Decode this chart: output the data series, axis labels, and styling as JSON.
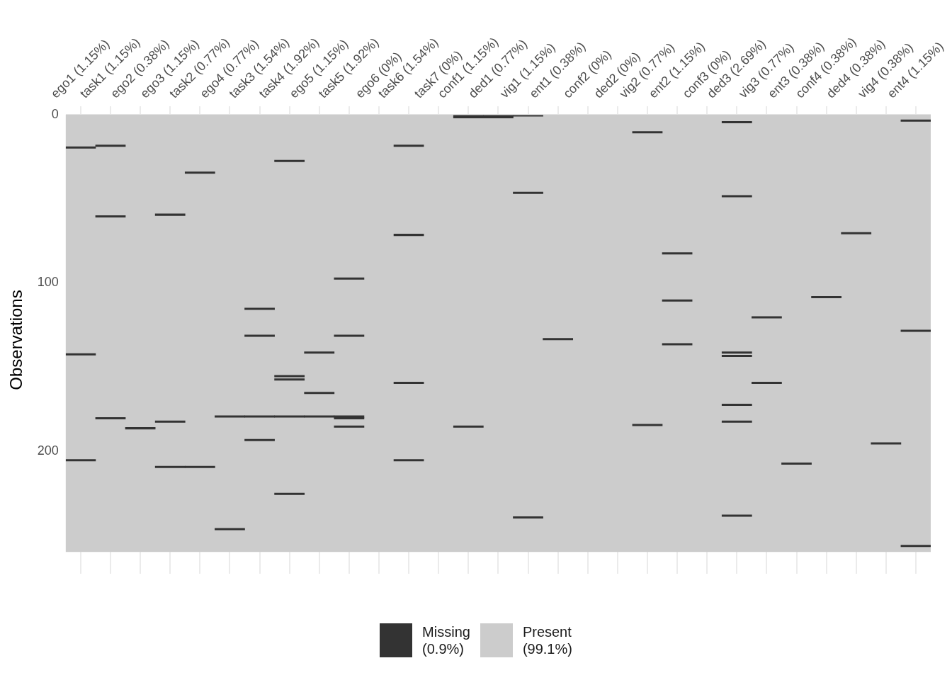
{
  "chart_data": {
    "type": "bar",
    "ylabel": "Observations",
    "categories": [
      "ego1 (1.15%)",
      "task1 (1.15%)",
      "ego2 (0.38%)",
      "ego3 (1.15%)",
      "task2 (0.77%)",
      "ego4 (0.77%)",
      "task3 (1.54%)",
      "task4 (1.92%)",
      "ego5 (1.15%)",
      "task5 (1.92%)",
      "ego6 (0%)",
      "task6 (1.54%)",
      "task7 (0%)",
      "conf1 (1.15%)",
      "ded1 (0.77%)",
      "vig1 (1.15%)",
      "ent1 (0.38%)",
      "conf2 (0%)",
      "ded2 (0%)",
      "vig2 (0.77%)",
      "ent2 (1.15%)",
      "conf3 (0%)",
      "ded3 (2.69%)",
      "vig3 (0.77%)",
      "ent3 (0.38%)",
      "conf4 (0.38%)",
      "ded4 (0.38%)",
      "vig4 (0.38%)",
      "ent4 (1.15%)"
    ],
    "series": [
      {
        "name": "Missing\n(0.9%)",
        "color": "#333333",
        "base": [
          19,
          18,
          186,
          59,
          34,
          179,
          115,
          27,
          141,
          97,
          null,
          18,
          null,
          0,
          0,
          0,
          133,
          null,
          null,
          10,
          82,
          null,
          4,
          120,
          207,
          108,
          70,
          195,
          3
        ],
        "values": [
          1,
          1,
          1,
          1,
          1,
          1,
          1,
          1,
          1,
          1,
          null,
          1,
          null,
          1,
          1,
          1,
          1,
          null,
          null,
          1,
          1,
          null,
          1,
          1,
          1,
          1,
          1,
          1,
          1
        ]
      },
      {
        "color": "#333333",
        "base": [
          142,
          60,
          null,
          182,
          209,
          246,
          131,
          155,
          165,
          131,
          null,
          71,
          null,
          1,
          1,
          46,
          null,
          null,
          null,
          184,
          110,
          null,
          48,
          159,
          null,
          null,
          null,
          null,
          128
        ],
        "values": [
          1,
          1,
          null,
          1,
          1,
          1,
          1,
          1,
          1,
          1,
          null,
          1,
          null,
          1,
          1,
          1,
          null,
          null,
          null,
          1,
          1,
          null,
          1,
          1,
          null,
          null,
          null,
          null,
          1
        ]
      },
      {
        "color": "#333333",
        "base": [
          205,
          180,
          null,
          209,
          null,
          null,
          179,
          157,
          179,
          179,
          null,
          159,
          null,
          185,
          null,
          239,
          null,
          null,
          null,
          null,
          136,
          null,
          141,
          null,
          null,
          null,
          null,
          null,
          256
        ],
        "values": [
          1,
          1,
          null,
          1,
          null,
          null,
          1,
          1,
          1,
          1,
          null,
          1,
          null,
          1,
          null,
          1,
          null,
          null,
          null,
          null,
          1,
          null,
          1,
          null,
          null,
          null,
          null,
          null,
          1
        ]
      },
      {
        "color": "#333333",
        "base": [
          null,
          null,
          null,
          null,
          null,
          null,
          193,
          179,
          null,
          180,
          null,
          205,
          null,
          null,
          null,
          null,
          null,
          null,
          null,
          null,
          null,
          null,
          143,
          null,
          null,
          null,
          null,
          null,
          null
        ],
        "values": [
          null,
          null,
          null,
          null,
          null,
          null,
          1,
          1,
          null,
          1,
          null,
          1,
          null,
          null,
          null,
          null,
          null,
          null,
          null,
          null,
          null,
          null,
          1,
          null,
          null,
          null,
          null,
          null,
          null
        ]
      },
      {
        "color": "#333333",
        "base": [
          null,
          null,
          null,
          null,
          null,
          null,
          null,
          225,
          null,
          185,
          null,
          null,
          null,
          null,
          null,
          null,
          null,
          null,
          null,
          null,
          null,
          null,
          172,
          null,
          null,
          null,
          null,
          null,
          null
        ],
        "values": [
          null,
          null,
          null,
          null,
          null,
          null,
          null,
          1,
          null,
          1,
          null,
          null,
          null,
          null,
          null,
          null,
          null,
          null,
          null,
          null,
          null,
          null,
          1,
          null,
          null,
          null,
          null,
          null,
          null
        ]
      },
      {
        "color": "#333333",
        "base": [
          null,
          null,
          null,
          null,
          null,
          null,
          null,
          null,
          null,
          null,
          null,
          null,
          null,
          null,
          null,
          null,
          null,
          null,
          null,
          null,
          null,
          null,
          182,
          null,
          null,
          null,
          null,
          null,
          null
        ],
        "values": [
          null,
          null,
          null,
          null,
          null,
          null,
          null,
          null,
          null,
          null,
          null,
          null,
          null,
          null,
          null,
          null,
          null,
          null,
          null,
          null,
          null,
          null,
          1,
          null,
          null,
          null,
          null,
          null,
          null
        ]
      },
      {
        "color": "#333333",
        "base": [
          null,
          null,
          null,
          null,
          null,
          null,
          null,
          null,
          null,
          null,
          null,
          null,
          null,
          null,
          null,
          null,
          null,
          null,
          null,
          null,
          null,
          null,
          238,
          null,
          null,
          null,
          null,
          null,
          null
        ],
        "values": [
          null,
          null,
          null,
          null,
          null,
          null,
          null,
          null,
          null,
          null,
          null,
          null,
          null,
          null,
          null,
          null,
          null,
          null,
          null,
          null,
          null,
          null,
          1,
          null,
          null,
          null,
          null,
          null,
          null
        ]
      }
    ],
    "bands": [
      {
        "axis": "y",
        "from": 0,
        "to": 260,
        "label": "Present\n(99.1%)",
        "color": "#cccccc"
      }
    ],
    "ylim": [
      273,
      -5
    ],
    "yticks": [
      0,
      100,
      200
    ],
    "grid": true,
    "legend": "bottom"
  }
}
